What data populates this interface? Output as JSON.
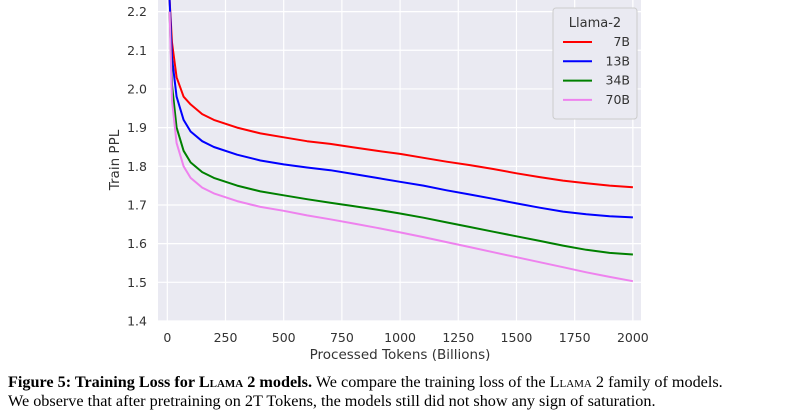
{
  "chart_data": {
    "type": "line",
    "xlabel": "Processed Tokens (Billions)",
    "ylabel": "Train PPL",
    "xlim": [
      -40,
      2035
    ],
    "ylim": [
      1.4,
      2.23
    ],
    "x_ticks": [
      "0",
      "250",
      "500",
      "750",
      "1000",
      "1250",
      "1500",
      "1750",
      "2000"
    ],
    "y_ticks": [
      "1.4",
      "1.5",
      "1.6",
      "1.7",
      "1.8",
      "1.9",
      "2.0",
      "2.1",
      "2.2"
    ],
    "grid": true,
    "legend_title": "Llama-2",
    "legend_position": "top-right",
    "series": [
      {
        "name": "7B",
        "color": "#ff0000",
        "x": [
          10,
          20,
          40,
          70,
          100,
          150,
          200,
          300,
          400,
          500,
          600,
          700,
          800,
          900,
          1000,
          1100,
          1200,
          1300,
          1400,
          1500,
          1600,
          1700,
          1800,
          1900,
          2000
        ],
        "y": [
          2.23,
          2.12,
          2.03,
          1.98,
          1.96,
          1.935,
          1.92,
          1.9,
          1.885,
          1.875,
          1.865,
          1.858,
          1.849,
          1.84,
          1.832,
          1.822,
          1.812,
          1.803,
          1.793,
          1.782,
          1.772,
          1.763,
          1.756,
          1.75,
          1.746
        ]
      },
      {
        "name": "13B",
        "color": "#0000ff",
        "x": [
          10,
          20,
          40,
          70,
          100,
          150,
          200,
          300,
          400,
          500,
          600,
          700,
          800,
          900,
          1000,
          1100,
          1200,
          1300,
          1400,
          1500,
          1600,
          1700,
          1800,
          1900,
          2000
        ],
        "y": [
          2.23,
          2.08,
          1.98,
          1.92,
          1.89,
          1.865,
          1.85,
          1.83,
          1.815,
          1.805,
          1.797,
          1.79,
          1.78,
          1.77,
          1.76,
          1.75,
          1.738,
          1.727,
          1.716,
          1.704,
          1.693,
          1.683,
          1.676,
          1.671,
          1.668
        ]
      },
      {
        "name": "34B",
        "color": "#008000",
        "x": [
          10,
          20,
          40,
          70,
          100,
          150,
          200,
          300,
          400,
          500,
          600,
          700,
          800,
          900,
          1000,
          1100,
          1200,
          1300,
          1400,
          1500,
          1600,
          1700,
          1800,
          1900,
          2000
        ],
        "y": [
          2.2,
          2.01,
          1.9,
          1.84,
          1.81,
          1.785,
          1.77,
          1.75,
          1.735,
          1.725,
          1.715,
          1.706,
          1.697,
          1.688,
          1.678,
          1.667,
          1.655,
          1.643,
          1.631,
          1.619,
          1.607,
          1.595,
          1.584,
          1.576,
          1.572
        ]
      },
      {
        "name": "70B",
        "color": "#ee82ee",
        "x": [
          10,
          20,
          40,
          70,
          100,
          150,
          200,
          300,
          400,
          500,
          600,
          700,
          800,
          900,
          1000,
          1100,
          1200,
          1300,
          1400,
          1500,
          1600,
          1700,
          1800,
          1900,
          2000
        ],
        "y": [
          2.2,
          1.97,
          1.86,
          1.8,
          1.77,
          1.745,
          1.73,
          1.71,
          1.695,
          1.685,
          1.673,
          1.663,
          1.652,
          1.641,
          1.629,
          1.617,
          1.604,
          1.591,
          1.578,
          1.565,
          1.552,
          1.539,
          1.526,
          1.514,
          1.503
        ]
      }
    ]
  },
  "caption": {
    "label": "Figure 5: Training Loss for",
    "model_name": "Llama 2",
    "label_tail": "models.",
    "text_line1": "We compare the training loss of the",
    "model_name_2": "Llama 2",
    "text_line1_tail": "family of models.",
    "text_line2": "We observe that after pretraining on 2T Tokens, the models still did not show any sign of saturation."
  }
}
